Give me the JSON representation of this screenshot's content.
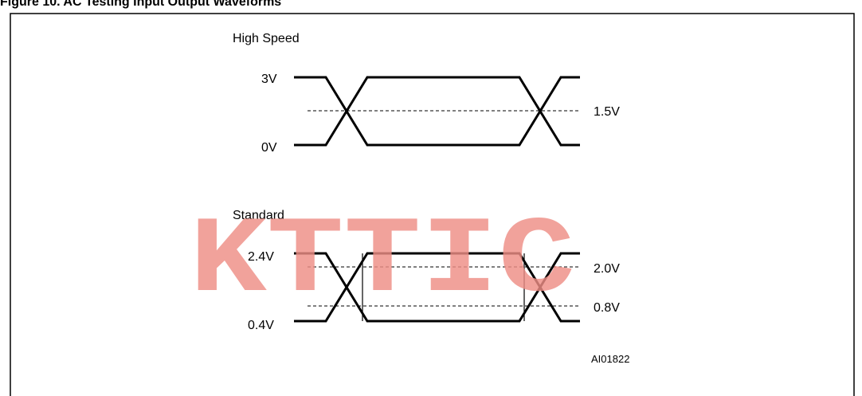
{
  "figure": {
    "caption": "Figure 10. AC Testing Input Output Waveforms",
    "reference_code": "AI01822"
  },
  "high_speed": {
    "title": "High Speed",
    "high_level": "3V",
    "low_level": "0V",
    "reference_level": "1.5V"
  },
  "standard": {
    "title": "Standard",
    "high_level": "2.4V",
    "low_level": "0.4V",
    "upper_reference": "2.0V",
    "lower_reference": "0.8V"
  },
  "watermark": {
    "text": "KTTIC",
    "color": "#ee8e86"
  }
}
